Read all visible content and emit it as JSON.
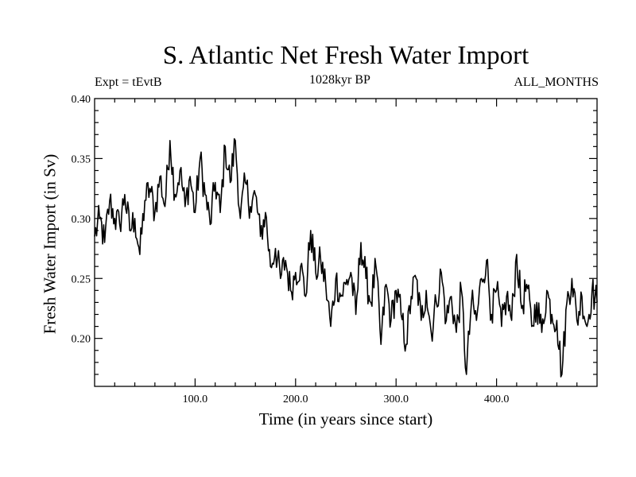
{
  "chart_data": {
    "type": "line",
    "title": "S. Atlantic Net Fresh Water Import",
    "subtitle_left": "Expt = tEvtB",
    "subtitle_center": "1028kyr BP",
    "subtitle_right": "ALL_MONTHS",
    "xlabel": "Time (in years since start)",
    "ylabel": "Fresh Water Import (in Sv)",
    "xlim": [
      0,
      500
    ],
    "ylim": [
      0.16,
      0.4
    ],
    "xticks": [
      100,
      200,
      300,
      400
    ],
    "xtick_labels": [
      "100.0",
      "200.0",
      "300.0",
      "400.0"
    ],
    "yticks": [
      0.2,
      0.25,
      0.3,
      0.35,
      0.4
    ],
    "ytick_labels": [
      "0.20",
      "0.25",
      "0.30",
      "0.35",
      "0.40"
    ],
    "grid": false,
    "series": [
      {
        "name": "Fresh Water Import",
        "x": [
          0,
          5,
          10,
          15,
          20,
          25,
          30,
          35,
          40,
          45,
          50,
          55,
          60,
          65,
          70,
          75,
          80,
          85,
          90,
          95,
          100,
          105,
          110,
          115,
          120,
          125,
          130,
          135,
          140,
          145,
          150,
          155,
          160,
          165,
          170,
          175,
          180,
          185,
          190,
          195,
          200,
          205,
          210,
          215,
          220,
          225,
          230,
          235,
          240,
          245,
          250,
          255,
          260,
          265,
          270,
          275,
          280,
          285,
          290,
          295,
          300,
          305,
          310,
          315,
          320,
          325,
          330,
          335,
          340,
          345,
          350,
          355,
          360,
          365,
          370,
          375,
          380,
          385,
          390,
          395,
          400,
          405,
          410,
          415,
          420,
          425,
          430,
          435,
          440,
          445,
          450,
          455,
          460,
          465,
          470,
          475,
          480,
          485,
          490,
          495,
          500
        ],
        "values": [
          0.285,
          0.3,
          0.28,
          0.315,
          0.3,
          0.295,
          0.32,
          0.29,
          0.3,
          0.27,
          0.315,
          0.325,
          0.305,
          0.335,
          0.31,
          0.365,
          0.32,
          0.34,
          0.31,
          0.335,
          0.305,
          0.35,
          0.32,
          0.295,
          0.33,
          0.305,
          0.36,
          0.33,
          0.365,
          0.3,
          0.33,
          0.31,
          0.32,
          0.285,
          0.305,
          0.26,
          0.275,
          0.25,
          0.265,
          0.24,
          0.255,
          0.26,
          0.235,
          0.29,
          0.255,
          0.265,
          0.245,
          0.21,
          0.25,
          0.235,
          0.245,
          0.255,
          0.22,
          0.28,
          0.25,
          0.23,
          0.26,
          0.195,
          0.245,
          0.215,
          0.24,
          0.22,
          0.195,
          0.235,
          0.25,
          0.215,
          0.24,
          0.205,
          0.23,
          0.255,
          0.215,
          0.235,
          0.205,
          0.24,
          0.17,
          0.23,
          0.215,
          0.25,
          0.265,
          0.22,
          0.24,
          0.21,
          0.235,
          0.215,
          0.27,
          0.225,
          0.245,
          0.21,
          0.23,
          0.205,
          0.24,
          0.22,
          0.215,
          0.17,
          0.23,
          0.25,
          0.215,
          0.235,
          0.21,
          0.24,
          0.23
        ]
      }
    ]
  }
}
